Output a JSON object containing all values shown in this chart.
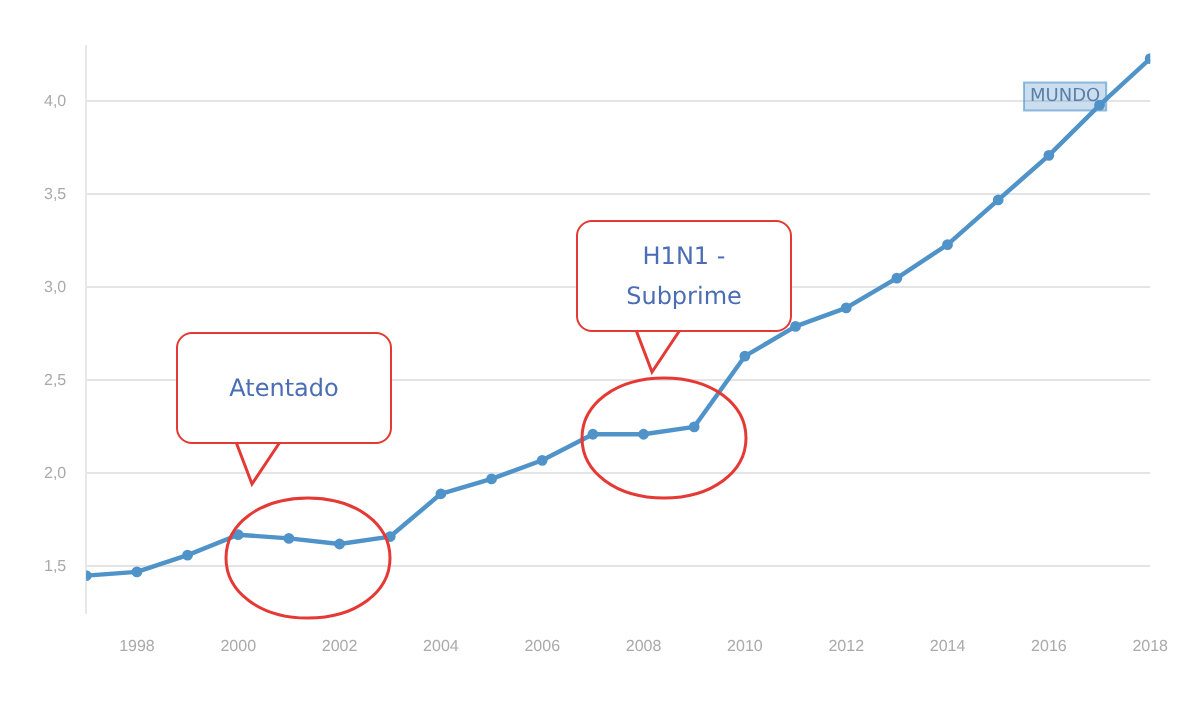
{
  "chart_data": {
    "type": "line",
    "x": [
      1997,
      1998,
      1999,
      2000,
      2001,
      2002,
      2003,
      2004,
      2005,
      2006,
      2007,
      2008,
      2009,
      2010,
      2011,
      2012,
      2013,
      2014,
      2015,
      2016,
      2017,
      2018
    ],
    "series": [
      {
        "name": "MUNDO",
        "color": "#4f93c9",
        "values": [
          1.45,
          1.47,
          1.56,
          1.67,
          1.65,
          1.62,
          1.66,
          1.89,
          1.97,
          2.07,
          2.21,
          2.21,
          2.25,
          2.63,
          2.79,
          2.89,
          3.05,
          3.23,
          3.47,
          3.71,
          3.98,
          4.23
        ]
      }
    ],
    "xlim": [
      1997,
      2018
    ],
    "xticks": [
      1998,
      2000,
      2002,
      2004,
      2006,
      2008,
      2010,
      2012,
      2014,
      2016,
      2018
    ],
    "ylim": [
      1.25,
      4.3
    ],
    "yticks": [
      {
        "value": 1.5,
        "label": "1,5"
      },
      {
        "value": 2,
        "label": "2,0"
      },
      {
        "value": 2.5,
        "label": "2,5"
      },
      {
        "value": 3,
        "label": "3,0"
      },
      {
        "value": 3.5,
        "label": "3,5"
      },
      {
        "value": 4,
        "label": "4,0"
      }
    ],
    "grid": "y",
    "legend": false,
    "marker": "circle",
    "line_style": "solid",
    "annotations": [
      "Atentado",
      "H1N1 - Subprime"
    ]
  }
}
